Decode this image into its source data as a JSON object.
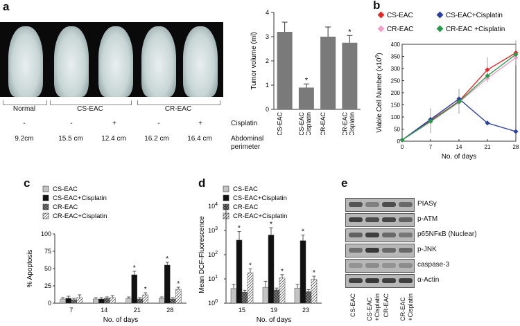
{
  "panel_a": {
    "label": "a",
    "groups": [
      "Normal",
      "CS-EAC",
      "CR-EAC"
    ],
    "cisplatin_row": [
      "-",
      "-",
      "+",
      "-",
      "+"
    ],
    "cisplatin_label": "Cisplatin",
    "perimeter_row": [
      "9.2cm",
      "15.5 cm",
      "12.4 cm",
      "16.2 cm",
      "16.4 cm"
    ],
    "perimeter_label_1": "Abdominal",
    "perimeter_label_2": "perimeter",
    "chart_data": {
      "type": "bar",
      "categories": [
        "CS-EAC",
        "CS-EAC +Cisplatin",
        "CR-EAC",
        "CR-EAC +Cisplatin"
      ],
      "values": [
        3.2,
        0.9,
        3.0,
        2.75
      ],
      "errors": [
        0.4,
        0.15,
        0.4,
        0.3
      ],
      "stars": [
        "",
        "*",
        "",
        "*"
      ],
      "ylabel": "Tumor volume (ml)",
      "ylim": [
        0,
        4
      ],
      "yticks": [
        "0",
        "1",
        "2",
        "3",
        "4"
      ],
      "bar_color": "#7a7a7a"
    }
  },
  "panel_b": {
    "label": "b",
    "chart_data": {
      "type": "line",
      "x": [
        0,
        7,
        14,
        21,
        28
      ],
      "xticks": [
        "0",
        "7",
        "14",
        "21",
        "28"
      ],
      "yticks": [
        "0",
        "50",
        "100",
        "150",
        "200",
        "250",
        "300",
        "350",
        "400"
      ],
      "ylim": [
        0,
        400
      ],
      "xlabel": "No. of days",
      "ylabel": "Viable Cell Number (x10",
      "ylabel_sup": "6",
      "ylabel_end": ")",
      "series": [
        {
          "name": "CS-EAC",
          "color": "#e02a2a",
          "values": [
            5,
            85,
            165,
            295,
            365
          ]
        },
        {
          "name": "CS-EAC+Cisplatin",
          "color": "#2a3fa0",
          "values": [
            5,
            90,
            175,
            75,
            40
          ]
        },
        {
          "name": "CR-EAC",
          "color": "#f0a0c8",
          "values": [
            5,
            80,
            160,
            260,
            345
          ]
        },
        {
          "name": "CR-EAC +Cisplatin",
          "color": "#2a9a4a",
          "values": [
            5,
            82,
            163,
            270,
            358
          ]
        }
      ]
    }
  },
  "panel_c": {
    "label": "c",
    "chart_data": {
      "type": "bar",
      "categories": [
        "7",
        "14",
        "21",
        "28"
      ],
      "xlabel": "No. of days",
      "ylabel": "% Apoptosis",
      "ylim": [
        0,
        100
      ],
      "yticks": [
        "0",
        "25",
        "50",
        "75",
        "100"
      ],
      "series": [
        {
          "name": "CS-EAC",
          "values": [
            6,
            6,
            7,
            7
          ],
          "errors": [
            2,
            2,
            2,
            2
          ],
          "stars": [
            "",
            "",
            "",
            ""
          ]
        },
        {
          "name": "CS-EAC+Cisplatin",
          "values": [
            7,
            6,
            41,
            55
          ],
          "errors": [
            3,
            2,
            5,
            4
          ],
          "stars": [
            "",
            "",
            "*",
            "*"
          ]
        },
        {
          "name": "CR-EAC",
          "values": [
            5,
            7,
            6,
            6
          ],
          "errors": [
            2,
            2,
            2,
            2
          ],
          "stars": [
            "",
            "",
            "",
            ""
          ]
        },
        {
          "name": "CR-EAC+Cisplatin",
          "values": [
            8,
            8,
            12,
            20
          ],
          "errors": [
            4,
            3,
            3,
            3
          ],
          "stars": [
            "",
            "",
            "*",
            "*"
          ]
        }
      ]
    }
  },
  "panel_d": {
    "label": "d",
    "chart_data": {
      "type": "bar",
      "scale": "log",
      "categories": [
        "15",
        "19",
        "23"
      ],
      "xlabel": "No. of days",
      "ylabel": "Mean DCF-Fluorescence",
      "ylim": [
        1,
        10000
      ],
      "yticks_base": "10",
      "yticks_exp": [
        "0",
        "1",
        "2",
        "3",
        "4"
      ],
      "series": [
        {
          "name": "CS-EAC",
          "values": [
            4,
            4.5,
            4.2
          ],
          "err_top": [
            6,
            8,
            6
          ],
          "stars": [
            "",
            "",
            ""
          ]
        },
        {
          "name": "CS-EAC+Cisplatin",
          "values": [
            400,
            650,
            380
          ],
          "err_top": [
            900,
            1300,
            650
          ],
          "stars": [
            "*",
            "*",
            "*"
          ]
        },
        {
          "name": "CR-EAC",
          "values": [
            2.8,
            3.5,
            3.0
          ],
          "err_top": [
            3.4,
            4.2,
            3.6
          ],
          "stars": [
            "",
            "",
            ""
          ]
        },
        {
          "name": "CR-EAC+Cisplatin",
          "values": [
            18,
            11,
            9.5
          ],
          "err_top": [
            26,
            15,
            13
          ],
          "stars": [
            "*",
            "*",
            "*"
          ]
        }
      ]
    }
  },
  "panel_e": {
    "label": "e",
    "proteins": [
      "PIASγ",
      "p-ATM",
      "p65NFκB (Nuclear)",
      "p-JNK",
      "caspase-3",
      "α-Actin"
    ],
    "lanes": [
      {
        "l1": "CS-EAC",
        "l2": ""
      },
      {
        "l1": "CS-EAC",
        "l2": "+Cisplatin"
      },
      {
        "l1": "CR-EAC",
        "l2": ""
      },
      {
        "l1": "CR-EAC",
        "l2": "+Cisplatin"
      }
    ],
    "band_intensity": [
      [
        0.7,
        0.4,
        0.75,
        0.55
      ],
      [
        0.85,
        0.75,
        0.8,
        0.6
      ],
      [
        0.6,
        0.85,
        0.55,
        0.45
      ],
      [
        0.5,
        0.9,
        0.55,
        0.55
      ],
      [
        0.25,
        0.3,
        0.25,
        0.3
      ],
      [
        0.85,
        0.9,
        0.85,
        0.85
      ]
    ]
  }
}
